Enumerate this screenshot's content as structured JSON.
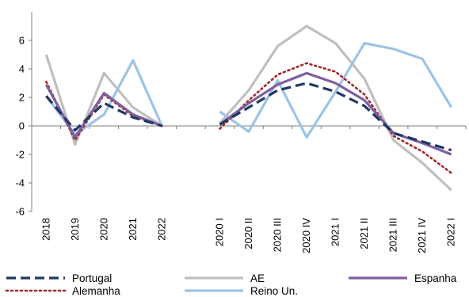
{
  "chart_data": {
    "type": "line",
    "title": "",
    "xlabel": "",
    "ylabel": "",
    "ylim": [
      -6,
      8
    ],
    "yticks": [
      -6,
      -4,
      -2,
      0,
      2,
      4,
      6
    ],
    "grid": false,
    "legend_position": "bottom",
    "categories": [
      "2018",
      "2019",
      "2020",
      "2021",
      "2022",
      "",
      "2020 I",
      "2020 II",
      "2020 III",
      "2020 IV",
      "2021 I",
      "2021 II",
      "2021 III",
      "2021 IV",
      "2022 I"
    ],
    "series": [
      {
        "name": "Portugal",
        "color": "#1f3864",
        "style": "dashed",
        "values": [
          2.1,
          -0.3,
          1.6,
          0.6,
          0.0,
          null,
          0.1,
          1.3,
          2.5,
          3.0,
          2.4,
          1.4,
          -0.5,
          -1.1,
          -1.7
        ]
      },
      {
        "name": "AE",
        "color": "#bfbfbf",
        "style": "solid",
        "values": [
          5.0,
          -1.3,
          3.7,
          1.3,
          0.0,
          null,
          0.2,
          2.5,
          5.6,
          7.0,
          5.8,
          3.3,
          -1.0,
          -2.6,
          -4.5
        ]
      },
      {
        "name": "Espanha",
        "color": "#7f5f9f",
        "style": "solid",
        "values": [
          2.9,
          -0.8,
          2.3,
          0.8,
          0.0,
          null,
          0.1,
          1.6,
          2.9,
          3.7,
          3.0,
          1.8,
          -0.5,
          -1.2,
          -2.0
        ]
      },
      {
        "name": "Alemanha",
        "color": "#a0282b",
        "style": "dotted",
        "values": [
          3.1,
          -1.0,
          2.2,
          0.7,
          0.0,
          null,
          -0.2,
          1.8,
          3.6,
          4.4,
          3.8,
          2.2,
          -0.7,
          -1.8,
          -3.3
        ]
      },
      {
        "name": "Reino Un.",
        "color": "#9dc3e6",
        "style": "solid",
        "values": [
          2.1,
          -0.6,
          0.8,
          4.6,
          0.0,
          null,
          1.0,
          -0.4,
          3.2,
          -0.8,
          2.4,
          5.8,
          5.4,
          4.7,
          1.3
        ]
      }
    ]
  }
}
